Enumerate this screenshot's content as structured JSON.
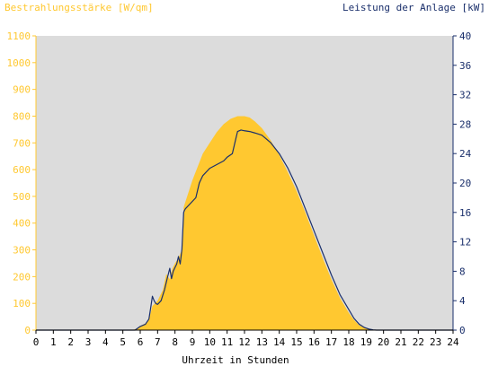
{
  "chart_data": {
    "type": "area",
    "title_left": "Bestrahlungsstärke [W/qm]",
    "title_right": "Leistung der Anlage [kW]",
    "xlabel": "Uhrzeit in Stunden",
    "xlim": [
      0,
      24
    ],
    "ylim_left": [
      0,
      1100
    ],
    "ylim_right": [
      0,
      40
    ],
    "x_ticks": [
      "0",
      "1",
      "2",
      "3",
      "4",
      "5",
      "6",
      "7",
      "8",
      "9",
      "10",
      "11",
      "12",
      "13",
      "14",
      "15",
      "16",
      "17",
      "18",
      "19",
      "20",
      "21",
      "22",
      "23",
      "24"
    ],
    "y_left_ticks": [
      "0",
      "100",
      "200",
      "300",
      "400",
      "500",
      "600",
      "700",
      "800",
      "900",
      "1000",
      "1100"
    ],
    "y_right_ticks": [
      "0",
      "4",
      "8",
      "12",
      "16",
      "20",
      "24",
      "28",
      "32",
      "36",
      "40"
    ],
    "grid": false,
    "colors": {
      "plot_background": "#dcdcdc",
      "irradiance_fill": "#ffc830",
      "power_line": "#1a2f6b",
      "left_axis": "#ffc830",
      "right_axis": "#1a2f6b"
    },
    "series": [
      {
        "axis": "left",
        "style": "filled-area",
        "x": [
          0,
          5.5,
          5.8,
          6.0,
          6.3,
          6.5,
          6.7,
          7.0,
          7.3,
          7.5,
          7.7,
          7.85,
          8.0,
          8.2,
          8.4,
          8.5,
          8.6,
          8.8,
          9.0,
          9.3,
          9.6,
          10.0,
          10.4,
          10.8,
          11.2,
          11.6,
          12.0,
          12.3,
          12.6,
          13.0,
          13.5,
          14.0,
          14.5,
          15.0,
          15.5,
          16.0,
          16.5,
          17.0,
          17.5,
          18.0,
          18.3,
          18.6,
          18.9,
          19.2,
          19.4,
          19.6,
          20,
          24
        ],
        "values": [
          0,
          0,
          5,
          15,
          25,
          40,
          90,
          110,
          150,
          210,
          190,
          230,
          250,
          270,
          300,
          460,
          480,
          520,
          560,
          610,
          660,
          700,
          740,
          770,
          790,
          800,
          800,
          795,
          780,
          755,
          710,
          655,
          590,
          520,
          440,
          355,
          270,
          190,
          120,
          65,
          38,
          18,
          8,
          3,
          1,
          0,
          0,
          0
        ]
      },
      {
        "axis": "right",
        "style": "line",
        "x": [
          0,
          5.7,
          6.0,
          6.3,
          6.5,
          6.6,
          6.7,
          6.8,
          6.9,
          7.0,
          7.2,
          7.4,
          7.55,
          7.7,
          7.8,
          7.9,
          8.0,
          8.1,
          8.2,
          8.3,
          8.4,
          8.5,
          8.55,
          8.6,
          8.8,
          9.0,
          9.2,
          9.4,
          9.6,
          10.0,
          10.4,
          10.8,
          11.0,
          11.3,
          11.5,
          11.6,
          11.8,
          12.0,
          12.3,
          12.6,
          13.0,
          13.5,
          14.0,
          14.5,
          15.0,
          15.5,
          16.0,
          16.5,
          17.0,
          17.5,
          18.0,
          18.3,
          18.6,
          18.9,
          19.2,
          19.4,
          19.6,
          20,
          24
        ],
        "values": [
          0,
          0,
          0.5,
          0.8,
          1.5,
          3.0,
          4.6,
          4.0,
          3.6,
          3.5,
          4.0,
          5.5,
          7.0,
          8.4,
          7.0,
          8.0,
          8.5,
          9.0,
          10.0,
          9.0,
          11.0,
          16.0,
          16.3,
          16.5,
          17.0,
          17.5,
          18.0,
          20.0,
          21.0,
          22.0,
          22.5,
          23.0,
          23.5,
          24.0,
          26.0,
          27.0,
          27.2,
          27.1,
          27.0,
          26.8,
          26.5,
          25.5,
          24.0,
          22.0,
          19.5,
          16.5,
          13.5,
          10.5,
          7.5,
          4.8,
          2.8,
          1.6,
          0.8,
          0.35,
          0.12,
          0.03,
          0,
          0,
          0
        ]
      }
    ]
  }
}
